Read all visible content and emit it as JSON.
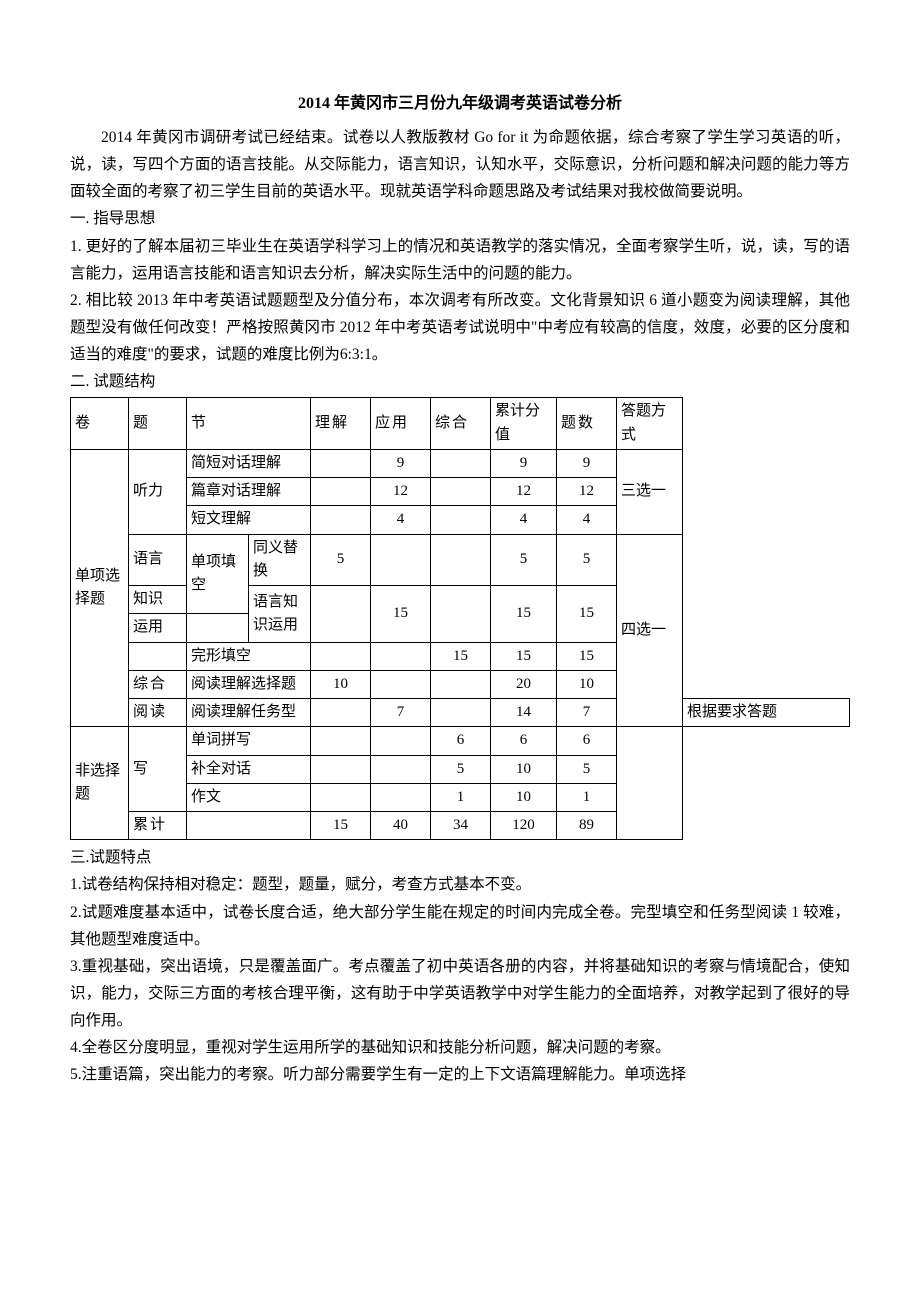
{
  "title": "2014 年黄冈市三月份九年级调考英语试卷分析",
  "intro1": "2014 年黄冈市调研考试已经结束。试卷以人教版教材 Go for it 为命题依据，综合考察了学生学习英语的听，说，读，写四个方面的语言技能。从交际能力，语言知识，认知水平，交际意识，分析问题和解决问题的能力等方面较全面的考察了初三学生目前的英语水平。现就英语学科命题思路及考试结果对我校做简要说明。",
  "sec1_head": "一. 指导思想",
  "sec1_p1": "1. 更好的了解本届初三毕业生在英语学科学习上的情况和英语教学的落实情况，全面考察学生听，说，读，写的语言能力，运用语言技能和语言知识去分析，解决实际生活中的问题的能力。",
  "sec1_p2": "2. 相比较 2013 年中考英语试题题型及分值分布，本次调考有所改变。文化背景知识 6 道小题变为阅读理解，其他题型没有做任何改变！严格按照黄冈市 2012 年中考英语考试说明中\"中考应有较高的信度，效度，必要的区分度和适当的难度\"的要求，试题的难度比例为6:3:1。",
  "sec2_head": "二. 试题结构",
  "headers": {
    "juan": "卷",
    "ti": "题",
    "jie": "节",
    "lijie": "理解",
    "yingyong": "应用",
    "zonghe": "综合",
    "fenzhi": "累计分值",
    "tishu": "题数",
    "fangshi": "答题方式"
  },
  "labels": {
    "danxiang": "单项选择题",
    "tingli": "听力",
    "yuyan": "语言",
    "zhishi": "知识",
    "yunyong": "运用",
    "zonghe": "综合",
    "yuedu": "阅读",
    "feixuanze": "非选择题",
    "xie": "写",
    "leiji": "累计"
  },
  "sections": {
    "jdh": "简短对话理解",
    "pzh": "篇章对话理解",
    "dwl": "短文理解",
    "dxtk": "单项填空",
    "tyth": "同义替换",
    "yyzsyy": "语言知识运用",
    "wxtk": "完形填空",
    "ydxz": "阅读理解选择题",
    "ydrw": "阅读理解任务型",
    "dcpx": "单词拼写",
    "bqdh": "补全对话",
    "zw": "作文"
  },
  "modes": {
    "sanxuanyi": "三选一",
    "sixuanyi": "四选一",
    "genju": "根据要求答题"
  },
  "nums": {
    "n1": "9",
    "n2": "12",
    "n3": "4",
    "n4": "5",
    "n5": "15",
    "n6": "15",
    "n6b": "15",
    "n6c": "15",
    "n7": "10",
    "n8": "20",
    "n9": "7",
    "n10": "14",
    "n11": "6",
    "n12": "5",
    "n13": "10",
    "n14": "1",
    "n15": "15",
    "n16": "40",
    "n17": "34",
    "n18": "120",
    "n19": "89"
  },
  "sec3_head": "三.试题特点",
  "sec3_p1": "1.试卷结构保持相对稳定：题型，题量，赋分，考查方式基本不变。",
  "sec3_p2": "2.试题难度基本适中，试卷长度合适，绝大部分学生能在规定的时间内完成全卷。完型填空和任务型阅读 1 较难，其他题型难度适中。",
  "sec3_p3": "3.重视基础，突出语境，只是覆盖面广。考点覆盖了初中英语各册的内容，并将基础知识的考察与情境配合，使知识，能力，交际三方面的考核合理平衡，这有助于中学英语教学中对学生能力的全面培养，对教学起到了很好的导向作用。",
  "sec3_p4": "4.全卷区分度明显，重视对学生运用所学的基础知识和技能分析问题，解决问题的考察。",
  "sec3_p5": "5.注重语篇，突出能力的考察。听力部分需要学生有一定的上下文语篇理解能力。单项选择"
}
